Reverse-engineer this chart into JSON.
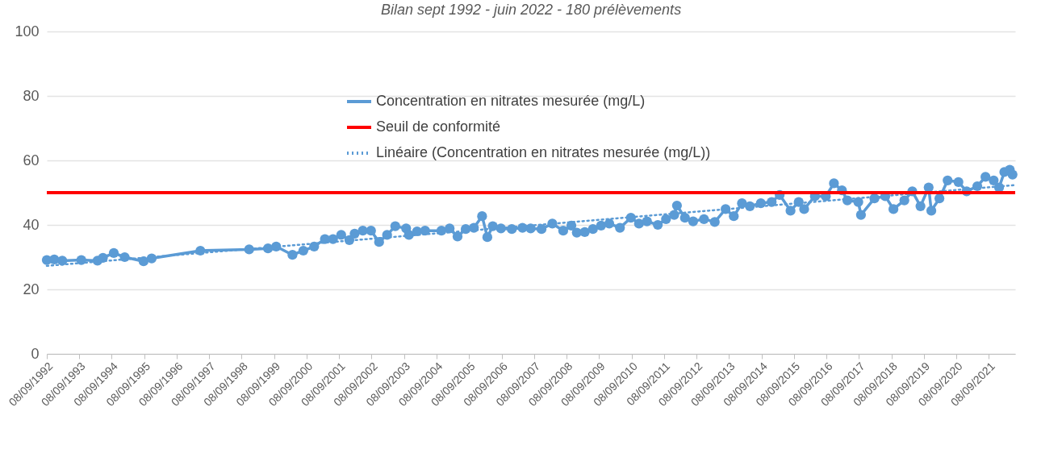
{
  "chart_data": {
    "type": "line",
    "title": "Bilan sept 1992 - juin 2022 - 180 prélèvements",
    "xlim": [
      "1992-09-08",
      "2022-07-01"
    ],
    "xticks": [
      {
        "value": "1992-09-08",
        "label": "08/09/1992"
      },
      {
        "value": "1993-09-08",
        "label": "08/09/1993"
      },
      {
        "value": "1994-09-08",
        "label": "08/09/1994"
      },
      {
        "value": "1995-09-08",
        "label": "08/09/1995"
      },
      {
        "value": "1996-09-08",
        "label": "08/09/1996"
      },
      {
        "value": "1997-09-08",
        "label": "08/09/1997"
      },
      {
        "value": "1998-09-08",
        "label": "08/09/1998"
      },
      {
        "value": "1999-09-08",
        "label": "08/09/1999"
      },
      {
        "value": "2000-09-08",
        "label": "08/09/2000"
      },
      {
        "value": "2001-09-08",
        "label": "08/09/2001"
      },
      {
        "value": "2002-09-08",
        "label": "08/09/2002"
      },
      {
        "value": "2003-09-08",
        "label": "08/09/2003"
      },
      {
        "value": "2004-09-08",
        "label": "08/09/2004"
      },
      {
        "value": "2005-09-08",
        "label": "08/09/2005"
      },
      {
        "value": "2006-09-08",
        "label": "08/09/2006"
      },
      {
        "value": "2007-09-08",
        "label": "08/09/2007"
      },
      {
        "value": "2008-09-08",
        "label": "08/09/2008"
      },
      {
        "value": "2009-09-08",
        "label": "08/09/2009"
      },
      {
        "value": "2010-09-08",
        "label": "08/09/2010"
      },
      {
        "value": "2011-09-08",
        "label": "08/09/2011"
      },
      {
        "value": "2012-09-08",
        "label": "08/09/2012"
      },
      {
        "value": "2013-09-08",
        "label": "08/09/2013"
      },
      {
        "value": "2014-09-08",
        "label": "08/09/2014"
      },
      {
        "value": "2015-09-08",
        "label": "08/09/2015"
      },
      {
        "value": "2016-09-08",
        "label": "08/09/2016"
      },
      {
        "value": "2017-09-08",
        "label": "08/09/2017"
      },
      {
        "value": "2018-09-08",
        "label": "08/09/2018"
      },
      {
        "value": "2019-09-08",
        "label": "08/09/2019"
      },
      {
        "value": "2020-09-08",
        "label": "08/09/2020"
      },
      {
        "value": "2021-09-08",
        "label": "08/09/2021"
      }
    ],
    "ylim": [
      0,
      100
    ],
    "yticks": [
      0,
      20,
      40,
      60,
      80,
      100
    ],
    "grid": "y",
    "legend": "top",
    "series": [
      {
        "name": "Concentration en nitrates mesurée (mg/L)",
        "color": "#5b9bd5",
        "marker": "circle",
        "line_style": "solid",
        "x": [
          "1992-09-08",
          "1992-12",
          "1993-03",
          "1993-10",
          "1994-04",
          "1994-06",
          "1994-10",
          "1995-02",
          "1995-09",
          "1995-12",
          "1997-06",
          "1998-12",
          "1999-07",
          "1999-10",
          "2000-04",
          "2000-08",
          "2000-12",
          "2001-04",
          "2001-07",
          "2001-10",
          "2002-01",
          "2002-03",
          "2002-06",
          "2002-09",
          "2002-12",
          "2003-03",
          "2003-06",
          "2003-10",
          "2003-11",
          "2004-02",
          "2004-05",
          "2004-11",
          "2005-02",
          "2005-05",
          "2005-08",
          "2005-11",
          "2006-02",
          "2006-04",
          "2006-06",
          "2006-09",
          "2007-01",
          "2007-05",
          "2007-08",
          "2007-12",
          "2008-04",
          "2008-08",
          "2008-11",
          "2009-01",
          "2009-04",
          "2009-07",
          "2009-10",
          "2010-01",
          "2010-05",
          "2010-09",
          "2010-12",
          "2011-03",
          "2011-07",
          "2011-10",
          "2012-01",
          "2012-02",
          "2012-05",
          "2012-08",
          "2012-12",
          "2013-04",
          "2013-08",
          "2013-11",
          "2014-02",
          "2014-05",
          "2014-09",
          "2015-01",
          "2015-04",
          "2015-08",
          "2015-11",
          "2016-01",
          "2016-05",
          "2016-09",
          "2016-12",
          "2017-03",
          "2017-05",
          "2017-09",
          "2017-10",
          "2018-03",
          "2018-07",
          "2018-10",
          "2019-02",
          "2019-05",
          "2019-08",
          "2019-11",
          "2019-12",
          "2020-03",
          "2020-06",
          "2020-10",
          "2021-01",
          "2021-05",
          "2021-08",
          "2021-11",
          "2022-01",
          "2022-03",
          "2022-05",
          "2022-06"
        ],
        "values": [
          29.1,
          29.3,
          28.9,
          29.1,
          28.9,
          29.8,
          31.3,
          30.0,
          28.7,
          29.6,
          32.0,
          32.4,
          32.7,
          33.3,
          30.7,
          32.0,
          33.3,
          35.6,
          35.6,
          36.9,
          35.3,
          37.3,
          38.2,
          38.2,
          34.7,
          36.9,
          39.6,
          38.9,
          36.9,
          38.0,
          38.2,
          38.2,
          38.9,
          36.4,
          38.7,
          39.1,
          42.7,
          36.2,
          39.6,
          38.9,
          38.7,
          39.1,
          38.9,
          38.7,
          40.4,
          38.2,
          39.8,
          37.6,
          37.8,
          38.7,
          39.8,
          40.4,
          39.1,
          42.2,
          40.4,
          41.1,
          40.0,
          41.8,
          43.1,
          46.0,
          42.2,
          41.1,
          41.8,
          40.9,
          44.9,
          42.7,
          46.7,
          45.8,
          46.7,
          47.1,
          49.3,
          44.4,
          47.1,
          44.9,
          48.9,
          48.9,
          52.9,
          50.7,
          47.6,
          47.1,
          43.1,
          48.2,
          48.9,
          44.9,
          47.6,
          50.4,
          45.8,
          51.6,
          44.4,
          48.2,
          53.8,
          53.3,
          50.4,
          52.0,
          54.9,
          53.8,
          51.6,
          56.4,
          57.1,
          55.6
        ]
      },
      {
        "name": "Linéaire (Concentration en nitrates mesurée (mg/L))",
        "color": "#5b9bd5",
        "marker": "none",
        "line_style": "dotted",
        "x": [
          "1992-09-08",
          "2022-06-15"
        ],
        "values": [
          27.3,
          52.3
        ]
      }
    ],
    "ref_lines": [
      {
        "axis": "y",
        "value": 50,
        "label": "Seuil de conformité",
        "color": "#ff0000"
      }
    ]
  }
}
